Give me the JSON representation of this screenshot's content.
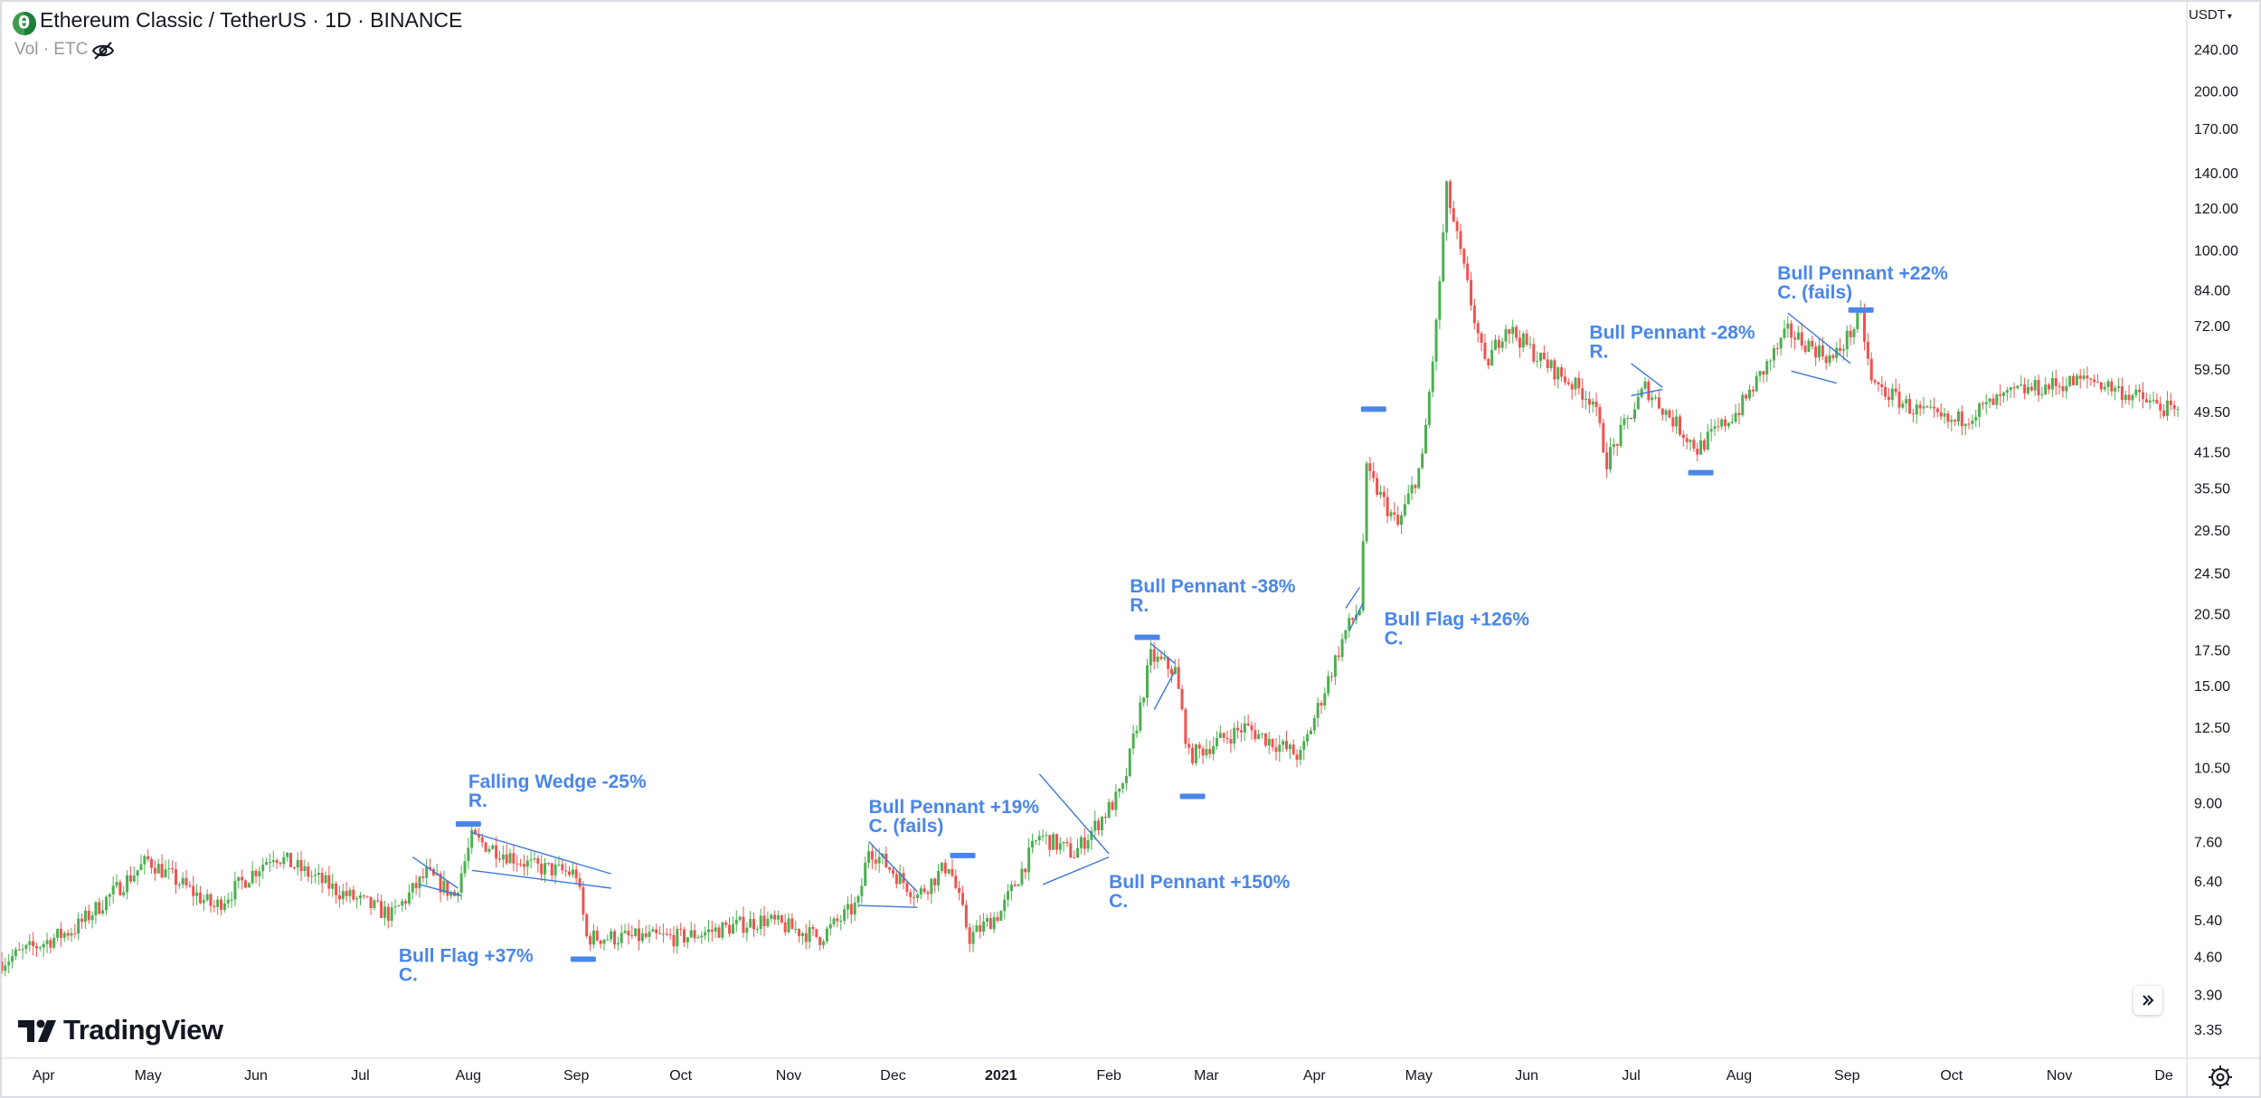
{
  "header": {
    "title": "Ethereum Classic / TetherUS · 1D · BINANCE",
    "vol_label": "Vol · ETC",
    "logo_icon": "etc-logo-icon",
    "visibility_icon": "eye-off-icon"
  },
  "price_scale": {
    "currency": "USDT",
    "labels": [
      "240.00",
      "200.00",
      "170.00",
      "140.00",
      "120.00",
      "100.00",
      "84.00",
      "72.00",
      "59.50",
      "49.50",
      "41.50",
      "35.50",
      "29.50",
      "24.50",
      "20.50",
      "17.50",
      "15.00",
      "12.50",
      "10.50",
      "9.00",
      "7.60",
      "6.40",
      "5.40",
      "4.60",
      "3.90",
      "3.35"
    ]
  },
  "time_scale": {
    "labels": [
      "Apr",
      "May",
      "Jun",
      "Jul",
      "Aug",
      "Sep",
      "Oct",
      "Nov",
      "Dec",
      "2021",
      "Feb",
      "Mar",
      "Apr",
      "May",
      "Jun",
      "Jul",
      "Aug",
      "Sep",
      "Oct",
      "Nov",
      "De"
    ]
  },
  "branding": {
    "name": "TradingView"
  },
  "colors": {
    "up": "#26a69a",
    "up_candle": "#4caf50",
    "down": "#ef5350",
    "annotation": "#4a86e8",
    "pattern_line": "#3c78d8",
    "grid_text": "#131722"
  },
  "chart_data": {
    "type": "candlestick",
    "symbol": "ETCUSDT",
    "interval": "1D",
    "exchange": "BINANCE",
    "scale": "logarithmic",
    "ylim": [
      3.3,
      250
    ],
    "date_range": [
      "2020-03-20",
      "2021-12-05"
    ],
    "anchors": [
      {
        "date": "2020-03-20",
        "price": 4.5
      },
      {
        "date": "2020-04-10",
        "price": 5.2
      },
      {
        "date": "2020-05-01",
        "price": 7.0
      },
      {
        "date": "2020-05-20",
        "price": 5.7
      },
      {
        "date": "2020-06-06",
        "price": 7.2
      },
      {
        "date": "2020-06-25",
        "price": 6.1
      },
      {
        "date": "2020-07-10",
        "price": 5.5
      },
      {
        "date": "2020-07-20",
        "price": 6.6
      },
      {
        "date": "2020-07-28",
        "price": 6.0
      },
      {
        "date": "2020-08-02",
        "price": 7.7
      },
      {
        "date": "2020-08-20",
        "price": 6.8
      },
      {
        "date": "2020-09-01",
        "price": 6.6
      },
      {
        "date": "2020-09-04",
        "price": 5.0
      },
      {
        "date": "2020-10-01",
        "price": 5.0
      },
      {
        "date": "2020-10-25",
        "price": 5.4
      },
      {
        "date": "2020-11-10",
        "price": 5.0
      },
      {
        "date": "2020-11-21",
        "price": 5.8
      },
      {
        "date": "2020-11-24",
        "price": 7.4
      },
      {
        "date": "2020-12-08",
        "price": 6.0
      },
      {
        "date": "2020-12-17",
        "price": 6.9
      },
      {
        "date": "2020-12-23",
        "price": 5.0
      },
      {
        "date": "2021-01-01",
        "price": 5.6
      },
      {
        "date": "2021-01-12",
        "price": 7.8
      },
      {
        "date": "2021-01-22",
        "price": 7.2
      },
      {
        "date": "2021-02-05",
        "price": 9.5
      },
      {
        "date": "2021-02-13",
        "price": 17.0
      },
      {
        "date": "2021-02-20",
        "price": 16.0
      },
      {
        "date": "2021-02-24",
        "price": 11.0
      },
      {
        "date": "2021-03-12",
        "price": 12.5
      },
      {
        "date": "2021-03-28",
        "price": 11.0
      },
      {
        "date": "2021-04-10",
        "price": 19.0
      },
      {
        "date": "2021-04-14",
        "price": 21.0
      },
      {
        "date": "2021-04-16",
        "price": 38.0
      },
      {
        "date": "2021-04-25",
        "price": 30.0
      },
      {
        "date": "2021-05-02",
        "price": 40.0
      },
      {
        "date": "2021-05-06",
        "price": 72.0
      },
      {
        "date": "2021-05-09",
        "price": 130.0
      },
      {
        "date": "2021-05-20",
        "price": 60.0
      },
      {
        "date": "2021-05-26",
        "price": 72.0
      },
      {
        "date": "2021-06-05",
        "price": 62.0
      },
      {
        "date": "2021-06-20",
        "price": 52.0
      },
      {
        "date": "2021-06-24",
        "price": 40.0
      },
      {
        "date": "2021-07-05",
        "price": 55.0
      },
      {
        "date": "2021-07-20",
        "price": 42.0
      },
      {
        "date": "2021-08-01",
        "price": 50.0
      },
      {
        "date": "2021-08-15",
        "price": 70.0
      },
      {
        "date": "2021-08-28",
        "price": 62.0
      },
      {
        "date": "2021-09-05",
        "price": 75.0
      },
      {
        "date": "2021-09-08",
        "price": 56.0
      },
      {
        "date": "2021-09-20",
        "price": 50.0
      },
      {
        "date": "2021-10-01",
        "price": 47.0
      },
      {
        "date": "2021-10-20",
        "price": 54.0
      },
      {
        "date": "2021-11-10",
        "price": 57.0
      },
      {
        "date": "2021-12-05",
        "price": 49.0
      }
    ],
    "annotations": [
      {
        "lines": [
          "Bull Flag +37%",
          "C."
        ],
        "anchor_date": "2020-07-12",
        "anchor_price": 4.5,
        "side": "below"
      },
      {
        "lines": [
          "Falling Wedge -25%",
          "R."
        ],
        "anchor_date": "2020-08-01",
        "anchor_price": 9.6,
        "side": "above"
      },
      {
        "lines": [
          "Bull Pennant +19%",
          "C. (fails)"
        ],
        "anchor_date": "2020-11-24",
        "anchor_price": 8.6,
        "side": "above"
      },
      {
        "lines": [
          "Bull Pennant +150%",
          "C."
        ],
        "anchor_date": "2021-02-01",
        "anchor_price": 6.2,
        "side": "below"
      },
      {
        "lines": [
          "Bull Pennant -38%",
          "R."
        ],
        "anchor_date": "2021-02-07",
        "anchor_price": 22.5,
        "side": "above"
      },
      {
        "lines": [
          "Bull Flag +126%",
          "C."
        ],
        "anchor_date": "2021-04-19",
        "anchor_price": 19.5,
        "side": "right"
      },
      {
        "lines": [
          "Bull Pennant  -28%",
          "R."
        ],
        "anchor_date": "2021-06-19",
        "anchor_price": 68.0,
        "side": "above"
      },
      {
        "lines": [
          "Bull Pennant +22%",
          "C. (fails)"
        ],
        "anchor_date": "2021-08-12",
        "anchor_price": 88.0,
        "side": "above"
      }
    ],
    "pattern_lines": [
      {
        "from": [
          "2020-07-16",
          7.1
        ],
        "to": [
          "2020-07-29",
          6.2
        ]
      },
      {
        "from": [
          "2020-07-18",
          6.3
        ],
        "to": [
          "2020-07-30",
          6.0
        ]
      },
      {
        "from": [
          "2020-08-02",
          7.9
        ],
        "to": [
          "2020-09-11",
          6.6
        ]
      },
      {
        "from": [
          "2020-08-02",
          6.7
        ],
        "to": [
          "2020-09-11",
          6.2
        ]
      },
      {
        "from": [
          "2020-11-24",
          7.6
        ],
        "to": [
          "2020-12-08",
          6.1
        ]
      },
      {
        "from": [
          "2020-11-21",
          5.75
        ],
        "to": [
          "2020-12-08",
          5.7
        ]
      },
      {
        "from": [
          "2021-01-12",
          10.2
        ],
        "to": [
          "2021-02-01",
          7.2
        ]
      },
      {
        "from": [
          "2021-01-13",
          6.3
        ],
        "to": [
          "2021-02-01",
          7.1
        ]
      },
      {
        "from": [
          "2021-02-13",
          18.0
        ],
        "to": [
          "2021-02-20",
          16.5
        ]
      },
      {
        "from": [
          "2021-02-14",
          13.5
        ],
        "to": [
          "2021-02-20",
          16.0
        ]
      },
      {
        "from": [
          "2021-04-10",
          21.0
        ],
        "to": [
          "2021-04-14",
          23.0
        ]
      },
      {
        "from": [
          "2021-04-11",
          19.0
        ],
        "to": [
          "2021-04-15",
          21.5
        ]
      },
      {
        "from": [
          "2021-07-01",
          61.0
        ],
        "to": [
          "2021-07-10",
          55.0
        ]
      },
      {
        "from": [
          "2021-07-01",
          53.0
        ],
        "to": [
          "2021-07-10",
          54.5
        ]
      },
      {
        "from": [
          "2021-08-15",
          76.0
        ],
        "to": [
          "2021-09-02",
          61.0
        ]
      },
      {
        "from": [
          "2021-08-16",
          59.0
        ],
        "to": [
          "2021-08-29",
          56.0
        ]
      }
    ],
    "level_markers": [
      {
        "date": "2020-08-01",
        "price": 8.2
      },
      {
        "date": "2020-09-03",
        "price": 4.55
      },
      {
        "date": "2020-12-21",
        "price": 7.15
      },
      {
        "date": "2021-02-12",
        "price": 18.5
      },
      {
        "date": "2021-02-25",
        "price": 9.25
      },
      {
        "date": "2021-04-18",
        "price": 50.0
      },
      {
        "date": "2021-07-21",
        "price": 37.9
      },
      {
        "date": "2021-09-05",
        "price": 77.0
      }
    ]
  }
}
